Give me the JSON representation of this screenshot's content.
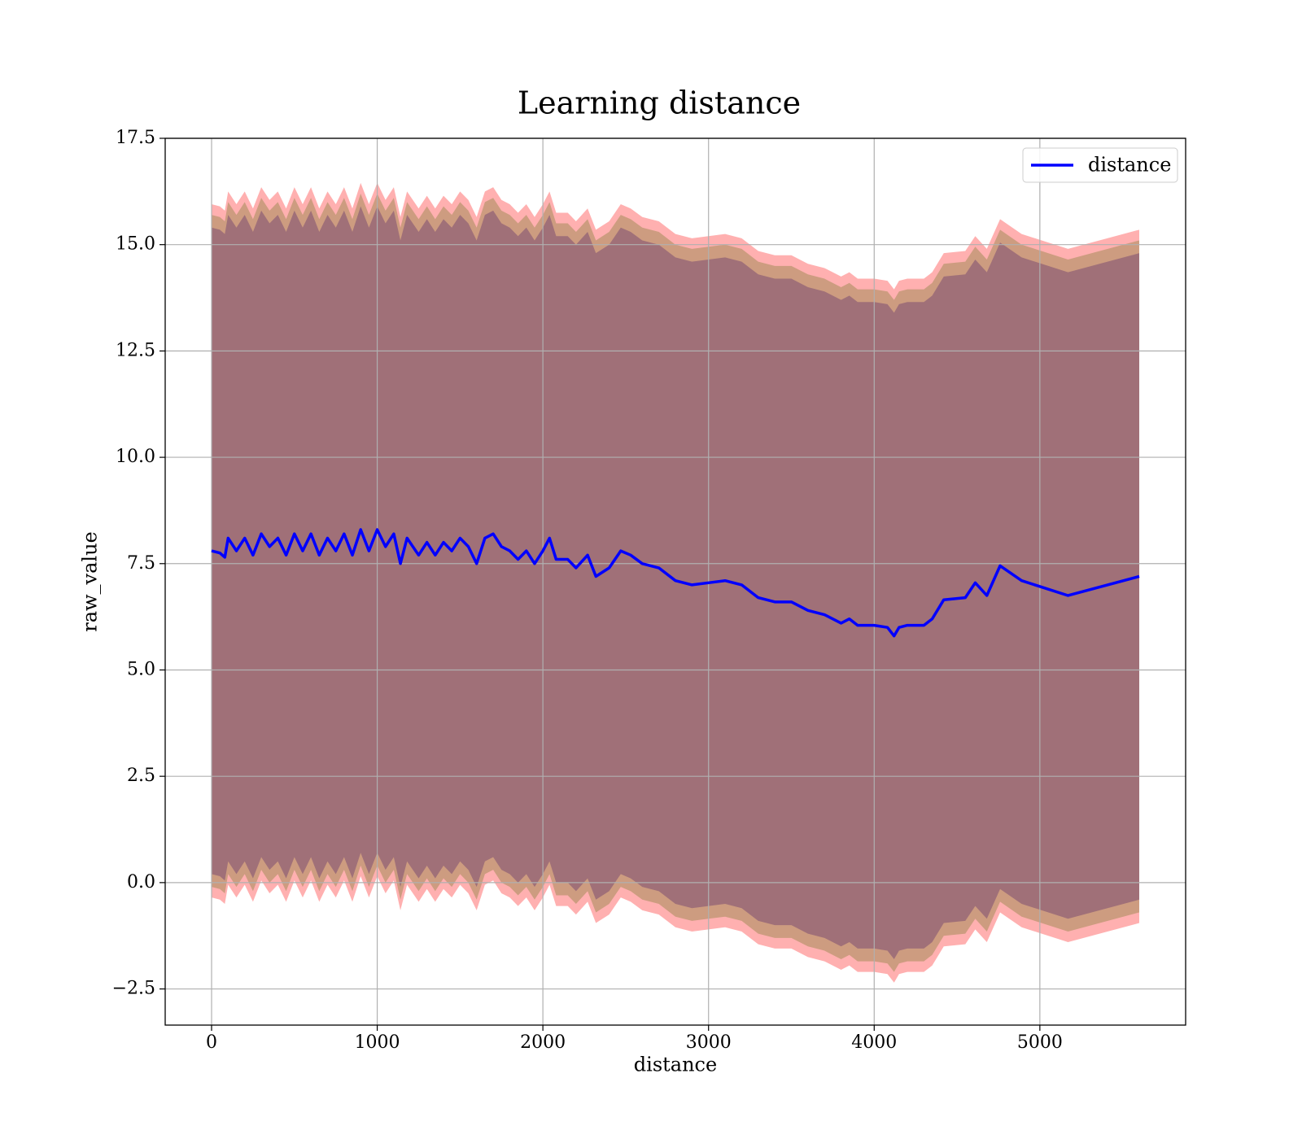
{
  "chart_data": {
    "type": "line",
    "title": "Learning distance",
    "x_label": "distance",
    "y_label": "raw_value",
    "xlim": [
      -280,
      5880
    ],
    "ylim": [
      -3.35,
      17.5
    ],
    "xticks": [
      0,
      1000,
      2000,
      3000,
      4000,
      5000
    ],
    "yticks": [
      {
        "value": -2.5,
        "label": "−2.5"
      },
      {
        "value": 0,
        "label": "0.0"
      },
      {
        "value": 2.5,
        "label": "2.5"
      },
      {
        "value": 5,
        "label": "5.0"
      },
      {
        "value": 7.5,
        "label": "7.5"
      },
      {
        "value": 10,
        "label": "10.0"
      },
      {
        "value": 12.5,
        "label": "12.5"
      },
      {
        "value": 15,
        "label": "15.0"
      },
      {
        "value": 17.5,
        "label": "17.5"
      }
    ],
    "grid": true,
    "legend": "upper right",
    "x": [
      0,
      50,
      80,
      100,
      150,
      200,
      250,
      300,
      350,
      400,
      450,
      500,
      550,
      600,
      650,
      700,
      750,
      800,
      850,
      900,
      950,
      1000,
      1050,
      1100,
      1140,
      1180,
      1250,
      1300,
      1350,
      1400,
      1450,
      1500,
      1550,
      1600,
      1650,
      1700,
      1750,
      1800,
      1850,
      1900,
      1950,
      2000,
      2040,
      2080,
      2150,
      2200,
      2270,
      2320,
      2400,
      2470,
      2530,
      2600,
      2700,
      2800,
      2900,
      3000,
      3100,
      3200,
      3300,
      3400,
      3500,
      3600,
      3700,
      3800,
      3850,
      3900,
      4000,
      4080,
      4120,
      4150,
      4200,
      4300,
      4350,
      4420,
      4550,
      4610,
      4680,
      4760,
      4890,
      5170,
      5600
    ],
    "series": [
      {
        "name": "distance",
        "color": "#0000ff",
        "values": [
          7.8,
          7.75,
          7.65,
          8.1,
          7.8,
          8.1,
          7.7,
          8.2,
          7.9,
          8.1,
          7.7,
          8.2,
          7.8,
          8.2,
          7.7,
          8.1,
          7.8,
          8.2,
          7.7,
          8.3,
          7.8,
          8.3,
          7.9,
          8.2,
          7.5,
          8.1,
          7.7,
          8.0,
          7.7,
          8.0,
          7.8,
          8.1,
          7.9,
          7.5,
          8.1,
          8.2,
          7.9,
          7.8,
          7.6,
          7.8,
          7.5,
          7.8,
          8.1,
          7.6,
          7.6,
          7.4,
          7.7,
          7.2,
          7.4,
          7.8,
          7.7,
          7.5,
          7.4,
          7.1,
          7.0,
          7.05,
          7.1,
          7.0,
          6.7,
          6.6,
          6.6,
          6.4,
          6.3,
          6.1,
          6.2,
          6.05,
          6.05,
          6.0,
          5.8,
          6.0,
          6.05,
          6.05,
          6.2,
          6.65,
          6.7,
          7.05,
          6.75,
          7.45,
          7.1,
          6.75,
          7.2
        ]
      }
    ],
    "bands": [
      {
        "color": "#ffb0b0",
        "spread": 8.15
      },
      {
        "color": "#cd9c80",
        "spread": 7.9
      },
      {
        "color": "#a07078",
        "spread": 7.6
      }
    ]
  }
}
